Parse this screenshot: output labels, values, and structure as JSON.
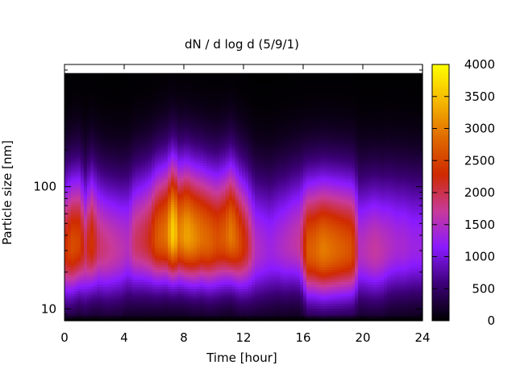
{
  "chart_data": {
    "type": "heatmap",
    "title": "dN / d log d (5/9/1)",
    "xlabel": "Time [hour]",
    "ylabel": "Particle size [nm]",
    "xlim": [
      0,
      24
    ],
    "ylim": [
      8,
      1000
    ],
    "yscale": "log",
    "x_ticks": [
      0,
      4,
      8,
      12,
      16,
      20,
      24
    ],
    "y_ticks": [
      10,
      100
    ],
    "colorbar": {
      "range": [
        0,
        4000
      ],
      "ticks": [
        0,
        500,
        1000,
        1500,
        2000,
        2500,
        3000,
        3500,
        4000
      ],
      "colormap": [
        "#000000",
        "#3c0077",
        "#8a1aff",
        "#c83a9a",
        "#cf2a00",
        "#e06a00",
        "#f5b800",
        "#ffff00"
      ]
    },
    "time_profile": {
      "x": [
        0,
        0.5,
        1,
        1.4,
        1.8,
        2.3,
        2.8,
        3.3,
        3.8,
        4.3,
        4.7,
        5.2,
        5.7,
        6.2,
        6.8,
        7.3,
        7.7,
        8.2,
        8.7,
        9.2,
        9.7,
        10.2,
        10.7,
        11.2,
        11.7,
        12.2,
        12.8,
        13.3,
        13.8,
        14.3,
        14.8,
        15.3,
        15.8,
        16.3,
        16.8,
        17.3,
        17.8,
        18.3,
        18.8,
        19.3,
        19.8,
        20.3,
        20.8,
        21.3,
        21.8,
        22.3,
        22.8,
        23.3,
        24
      ],
      "peak_dN": [
        2300,
        2600,
        2500,
        2000,
        2400,
        1900,
        1800,
        1700,
        1600,
        1500,
        1900,
        2000,
        2200,
        2700,
        2900,
        3700,
        3000,
        3300,
        3100,
        2900,
        2800,
        2600,
        2700,
        3000,
        2600,
        2200,
        1500,
        1400,
        1300,
        1400,
        1500,
        1600,
        1700,
        2700,
        2800,
        3000,
        2900,
        2800,
        2700,
        2600,
        1500,
        1600,
        1700,
        1600,
        1500,
        1400,
        1400,
        1300,
        1300
      ],
      "mode_diameter_nm": [
        30,
        32,
        34,
        30,
        34,
        32,
        30,
        30,
        30,
        32,
        34,
        35,
        36,
        38,
        40,
        42,
        40,
        40,
        38,
        38,
        36,
        36,
        38,
        40,
        35,
        33,
        30,
        30,
        30,
        32,
        32,
        34,
        34,
        30,
        30,
        30,
        30,
        30,
        30,
        30,
        30,
        30,
        30,
        30,
        32,
        32,
        32,
        32,
        32
      ]
    },
    "missing_data_top_nm": 850
  }
}
